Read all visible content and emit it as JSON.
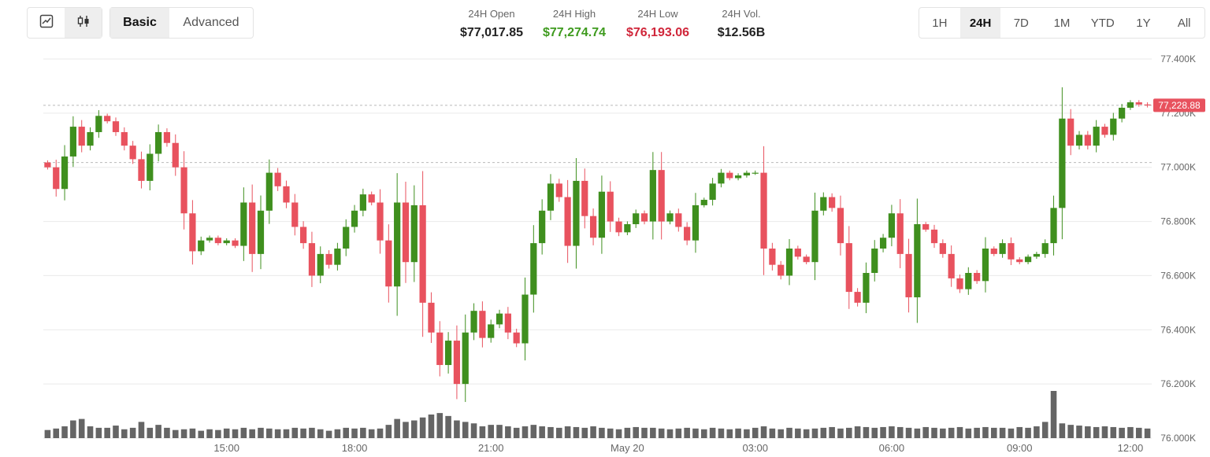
{
  "toolbar": {
    "chart_type_buttons": [
      {
        "icon": "line-chart-icon",
        "active": false
      },
      {
        "icon": "candlestick-icon",
        "active": true
      }
    ],
    "mode_buttons": [
      {
        "label": "Basic",
        "active": true
      },
      {
        "label": "Advanced",
        "active": false
      }
    ],
    "ranges": [
      {
        "label": "1H",
        "active": false
      },
      {
        "label": "24H",
        "active": true
      },
      {
        "label": "7D",
        "active": false
      },
      {
        "label": "1M",
        "active": false
      },
      {
        "label": "YTD",
        "active": false
      },
      {
        "label": "1Y",
        "active": false
      },
      {
        "label": "All",
        "active": false
      }
    ]
  },
  "stats": {
    "open": {
      "label": "24H Open",
      "value": "$77,017.85"
    },
    "high": {
      "label": "24H High",
      "value": "$77,274.74"
    },
    "low": {
      "label": "24H Low",
      "value": "$76,193.06"
    },
    "volume": {
      "label": "24H Vol.",
      "value": "$12.56B"
    }
  },
  "colors": {
    "up": "#3f8f1e",
    "down": "#e8525e",
    "high_text": "#3f9b1f",
    "low_text": "#d0263a",
    "volume": "#4a4a4a",
    "grid": "#eaeaea",
    "price_tag": "#e8525e"
  },
  "chart_data": {
    "type": "candlestick",
    "y_ticks": [
      "77.400K",
      "77.200K",
      "77.000K",
      "76.800K",
      "76.600K",
      "76.400K",
      "76.200K",
      "76.000K"
    ],
    "y_tick_values": [
      77400,
      77200,
      77000,
      76800,
      76600,
      76400,
      76200,
      76000
    ],
    "ylim": [
      76000,
      77400
    ],
    "x_ticks": [
      "15:00",
      "18:00",
      "21:00",
      "May 20",
      "03:00",
      "06:00",
      "09:00",
      "12:00"
    ],
    "current_price_label": "77,228.88",
    "current_price": 77228.88,
    "open_reference": 77017.85,
    "closes": [
      77000,
      76920,
      77040,
      77150,
      77080,
      77130,
      77190,
      77170,
      77130,
      77080,
      77030,
      76950,
      77050,
      77130,
      77090,
      77000,
      76830,
      76690,
      76730,
      76740,
      76720,
      76730,
      76710,
      76870,
      76680,
      76840,
      76980,
      76930,
      76870,
      76780,
      76720,
      76600,
      76680,
      76640,
      76700,
      76780,
      76840,
      76900,
      76870,
      76730,
      76560,
      76870,
      76650,
      76860,
      76500,
      76390,
      76270,
      76360,
      76200,
      76390,
      76470,
      76370,
      76420,
      76460,
      76390,
      76350,
      76530,
      76720,
      76840,
      76940,
      76890,
      76710,
      76950,
      76820,
      76740,
      76910,
      76800,
      76760,
      76790,
      76830,
      76800,
      76990,
      76800,
      76830,
      76780,
      76730,
      76860,
      76880,
      76940,
      76980,
      76960,
      76970,
      76980,
      76980,
      76700,
      76640,
      76600,
      76700,
      76670,
      76650,
      76840,
      76890,
      76850,
      76720,
      76540,
      76500,
      76610,
      76700,
      76740,
      76830,
      76680,
      76520,
      76790,
      76770,
      76720,
      76680,
      76590,
      76550,
      76610,
      76580,
      76700,
      76680,
      76720,
      76660,
      76650,
      76670,
      76680,
      76720,
      76850,
      77180,
      77080,
      77120,
      77080,
      77150,
      77120,
      77180,
      77220,
      77240,
      77232,
      77229
    ],
    "volumes": [
      0.11,
      0.13,
      0.16,
      0.24,
      0.26,
      0.16,
      0.14,
      0.14,
      0.17,
      0.12,
      0.14,
      0.22,
      0.14,
      0.18,
      0.14,
      0.11,
      0.12,
      0.13,
      0.1,
      0.12,
      0.11,
      0.13,
      0.12,
      0.14,
      0.12,
      0.14,
      0.13,
      0.12,
      0.12,
      0.14,
      0.13,
      0.14,
      0.12,
      0.1,
      0.12,
      0.14,
      0.13,
      0.14,
      0.12,
      0.13,
      0.18,
      0.26,
      0.22,
      0.24,
      0.28,
      0.32,
      0.34,
      0.3,
      0.24,
      0.22,
      0.2,
      0.16,
      0.18,
      0.18,
      0.16,
      0.14,
      0.16,
      0.18,
      0.16,
      0.15,
      0.14,
      0.16,
      0.15,
      0.14,
      0.16,
      0.14,
      0.13,
      0.12,
      0.14,
      0.15,
      0.14,
      0.14,
      0.13,
      0.12,
      0.13,
      0.14,
      0.13,
      0.12,
      0.14,
      0.13,
      0.12,
      0.13,
      0.12,
      0.14,
      0.16,
      0.13,
      0.12,
      0.14,
      0.13,
      0.12,
      0.13,
      0.14,
      0.15,
      0.13,
      0.14,
      0.16,
      0.15,
      0.14,
      0.15,
      0.16,
      0.15,
      0.14,
      0.13,
      0.15,
      0.14,
      0.13,
      0.14,
      0.15,
      0.13,
      0.14,
      0.15,
      0.14,
      0.14,
      0.13,
      0.15,
      0.14,
      0.16,
      0.22,
      0.64,
      0.2,
      0.18,
      0.17,
      0.16,
      0.15,
      0.16,
      0.15,
      0.14,
      0.15,
      0.14,
      0.13
    ]
  }
}
